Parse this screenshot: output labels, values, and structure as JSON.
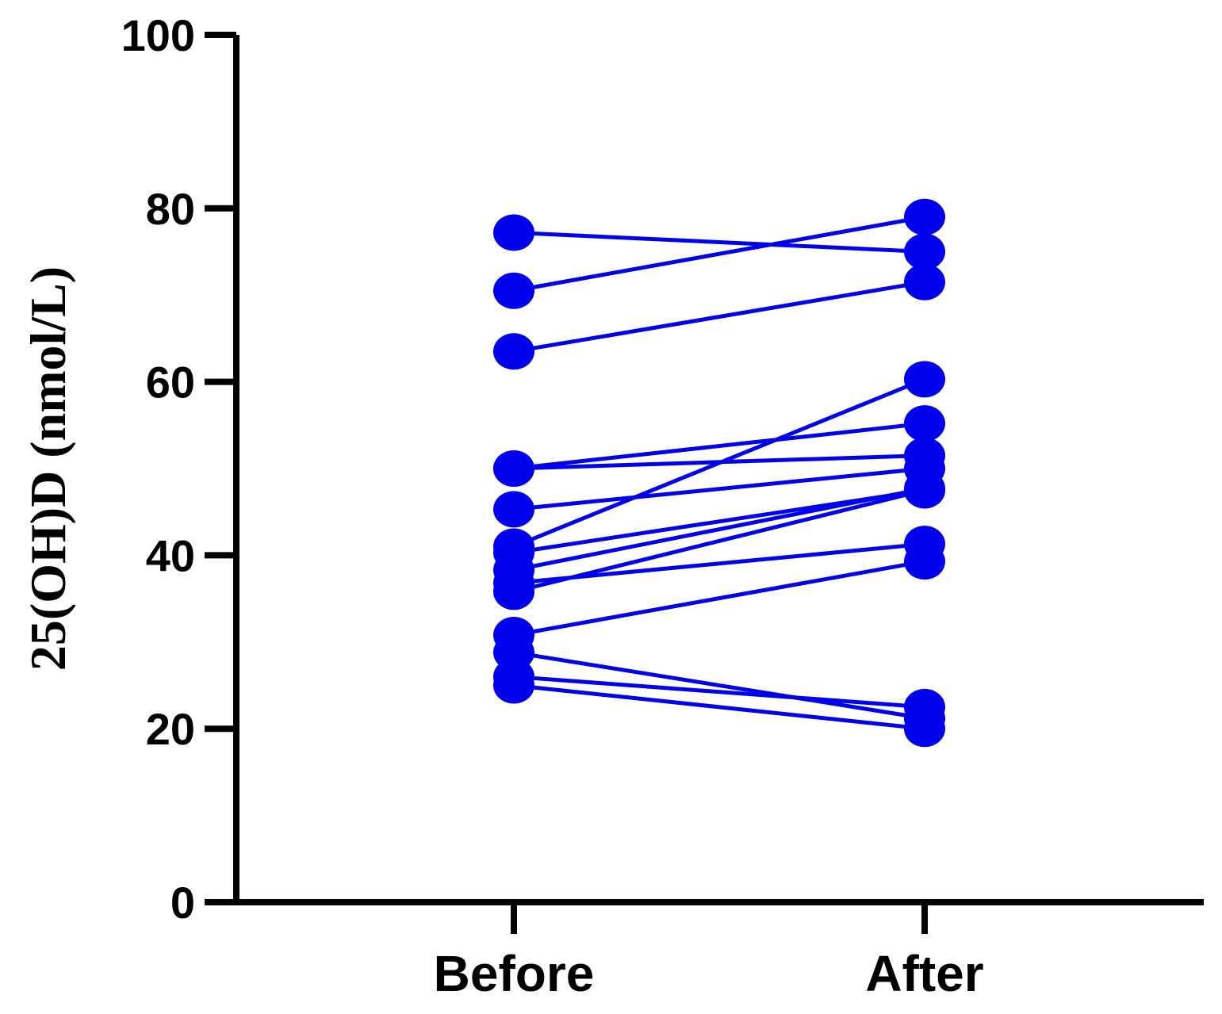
{
  "chart_data": {
    "type": "line",
    "subtype": "paired-before-after",
    "categories": [
      "Before",
      "After"
    ],
    "ylabel": "25(OH)D (nmol/L)",
    "xlabel": "",
    "ylim": [
      0,
      100
    ],
    "yticks": [
      0,
      20,
      40,
      60,
      80,
      100
    ],
    "grid": false,
    "legend": "none",
    "color": "#0000ee",
    "pairs": [
      {
        "before": 77.2,
        "after": 75.0
      },
      {
        "before": 70.5,
        "after": 79.0
      },
      {
        "before": 63.5,
        "after": 71.5
      },
      {
        "before": 50.0,
        "after": 51.5
      },
      {
        "before": 50.0,
        "after": 55.2
      },
      {
        "before": 45.3,
        "after": 50.0
      },
      {
        "before": 41.0,
        "after": 60.3
      },
      {
        "before": 40.3,
        "after": 47.5
      },
      {
        "before": 38.3,
        "after": 47.7
      },
      {
        "before": 36.8,
        "after": 41.3
      },
      {
        "before": 35.8,
        "after": 47.5
      },
      {
        "before": 30.8,
        "after": 39.3
      },
      {
        "before": 28.8,
        "after": 21.2
      },
      {
        "before": 26.0,
        "after": 22.5
      },
      {
        "before": 25.0,
        "after": 20.0
      }
    ]
  }
}
